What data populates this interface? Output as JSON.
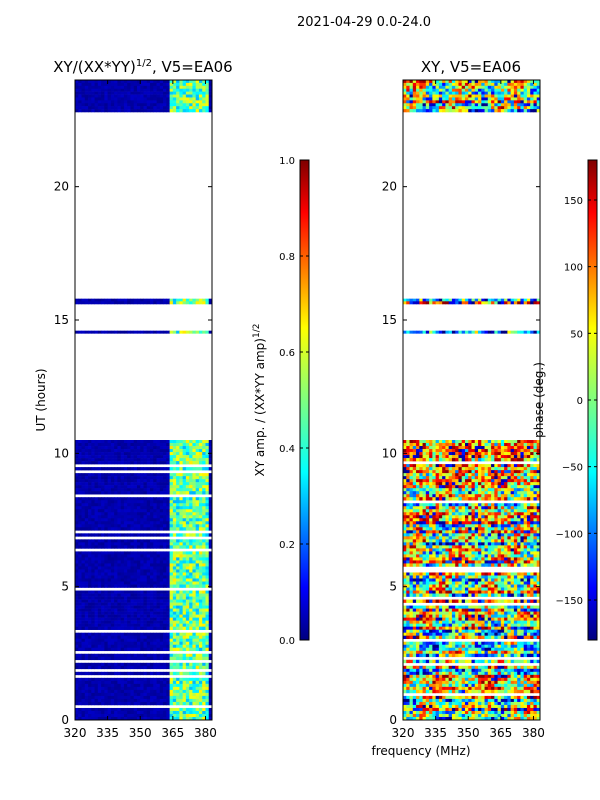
{
  "chart_data": {
    "suptitle": "2021-04-29 0.0-24.0",
    "xlabel": "frequency (MHz)",
    "panels": [
      {
        "type": "heatmap",
        "title": "XY/(XX*YY)",
        "title_sup": "1/2",
        "title_suffix": ", V5=EA06",
        "ylabel": "UT (hours)",
        "xlim": [
          320,
          383
        ],
        "ylim": [
          0,
          24
        ],
        "xticks": [
          "320",
          "335",
          "350",
          "365",
          "380"
        ],
        "xtick_values": [
          320,
          335,
          350,
          365,
          380
        ],
        "yticks": [
          "0",
          "5",
          "10",
          "15",
          "20"
        ],
        "ytick_values": [
          0,
          5,
          10,
          15,
          20
        ],
        "data_bands_ut": [
          [
            0,
            10.5
          ],
          [
            14.5,
            14.6
          ],
          [
            15.6,
            15.8
          ],
          [
            22.8,
            24
          ]
        ],
        "colorbar": {
          "label": "XY amp. / (XX*YY amp)",
          "label_sup": "1/2",
          "range": [
            0.0,
            1.0
          ],
          "ticks": [
            "0.0",
            "0.2",
            "0.4",
            "0.6",
            "0.8",
            "1.0"
          ],
          "tick_values": [
            0.0,
            0.2,
            0.4,
            0.6,
            0.8,
            1.0
          ]
        }
      },
      {
        "type": "heatmap",
        "title": "XY, V5=EA06",
        "ylabel": "",
        "xlim": [
          320,
          383
        ],
        "ylim": [
          0,
          24
        ],
        "xticks": [
          "320",
          "335",
          "350",
          "365",
          "380"
        ],
        "xtick_values": [
          320,
          335,
          350,
          365,
          380
        ],
        "yticks": [
          "0",
          "5",
          "10",
          "15",
          "20"
        ],
        "ytick_values": [
          0,
          5,
          10,
          15,
          20
        ],
        "data_bands_ut": [
          [
            0,
            10.5
          ],
          [
            14.5,
            14.6
          ],
          [
            15.6,
            15.8
          ],
          [
            22.8,
            24
          ]
        ],
        "colorbar": {
          "label": "phase (deg.)",
          "range": [
            -180,
            180
          ],
          "ticks": [
            "−150",
            "−100",
            "−50",
            "0",
            "50",
            "100",
            "150"
          ],
          "tick_values": [
            -150,
            -100,
            -50,
            0,
            50,
            100,
            150
          ]
        }
      }
    ]
  },
  "colors": {
    "jet": [
      "#00007f",
      "#0000ff",
      "#007fff",
      "#00ffff",
      "#7fff7f",
      "#ffff00",
      "#ff7f00",
      "#ff0000",
      "#7f0000"
    ]
  }
}
